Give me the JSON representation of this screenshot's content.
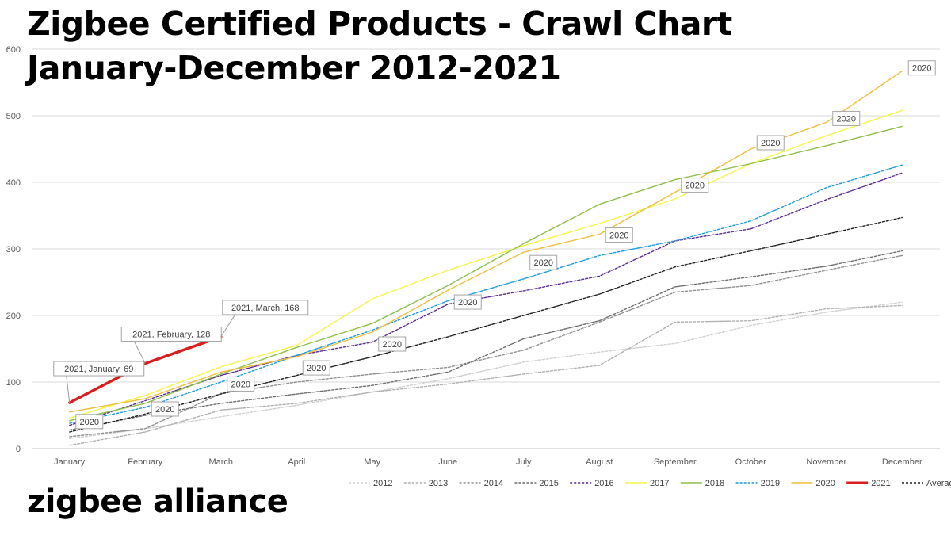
{
  "chart_data": {
    "type": "line",
    "title": "Zigbee Certified Products - Crawl Chart",
    "subtitle": "January-December 2012-2021",
    "categories": [
      "January",
      "February",
      "March",
      "April",
      "May",
      "June",
      "July",
      "August",
      "September",
      "October",
      "November",
      "December"
    ],
    "ylim": [
      0,
      600
    ],
    "yticks": [
      0,
      100,
      200,
      300,
      400,
      500,
      600
    ],
    "grid": true,
    "legend_position": "bottom",
    "series": [
      {
        "name": "2012",
        "color": "#d0d0d0",
        "dash": true,
        "values": [
          15,
          30,
          48,
          65,
          85,
          105,
          130,
          145,
          158,
          185,
          205,
          220
        ]
      },
      {
        "name": "2013",
        "color": "#b0b0b0",
        "dash": true,
        "values": [
          5,
          25,
          58,
          68,
          85,
          97,
          112,
          125,
          190,
          192,
          210,
          215
        ]
      },
      {
        "name": "2014",
        "color": "#909090",
        "dash": true,
        "values": [
          18,
          30,
          83,
          100,
          112,
          122,
          148,
          190,
          235,
          245,
          268,
          290
        ]
      },
      {
        "name": "2015",
        "color": "#6e6e6e",
        "dash": true,
        "values": [
          28,
          50,
          68,
          82,
          95,
          115,
          165,
          192,
          243,
          258,
          274,
          297
        ]
      },
      {
        "name": "2016",
        "color": "#5b2c91",
        "dash": true,
        "values": [
          35,
          72,
          110,
          140,
          160,
          217,
          237,
          259,
          312,
          330,
          374,
          414
        ]
      },
      {
        "name": "2017",
        "color": "#f5f54a",
        "dash": false,
        "values": [
          46,
          80,
          123,
          155,
          225,
          268,
          305,
          338,
          375,
          428,
          470,
          508
        ]
      },
      {
        "name": "2018",
        "color": "#8fbf4a",
        "dash": false,
        "values": [
          42,
          68,
          112,
          152,
          188,
          245,
          308,
          367,
          404,
          428,
          455,
          484
        ]
      },
      {
        "name": "2019",
        "color": "#1e9bd7",
        "dash": true,
        "values": [
          38,
          62,
          100,
          140,
          178,
          222,
          255,
          290,
          312,
          342,
          392,
          426
        ]
      },
      {
        "name": "2020",
        "color": "#eebe3c",
        "dash": false,
        "values": [
          55,
          75,
          115,
          138,
          175,
          238,
          295,
          322,
          385,
          450,
          490,
          567
        ]
      },
      {
        "name": "2021",
        "color": "#d81f1f",
        "dash": false,
        "width": 3.5,
        "values": [
          69,
          128,
          168,
          null,
          null,
          null,
          null,
          null,
          null,
          null,
          null,
          null
        ]
      },
      {
        "name": "Average",
        "color": "#222222",
        "dash": true,
        "values": [
          25,
          52,
          82,
          110,
          138,
          168,
          200,
          232,
          273,
          297,
          322,
          347
        ]
      }
    ],
    "annotations": [
      {
        "text": "2021, January, 69",
        "series": "2021",
        "category": "January"
      },
      {
        "text": "2021, February, 128",
        "series": "2021",
        "category": "February"
      },
      {
        "text": "2021, March, 168",
        "series": "2021",
        "category": "March"
      },
      {
        "text": "2020",
        "series": "2020",
        "category": "January"
      },
      {
        "text": "2020",
        "series": "2020",
        "category": "February"
      },
      {
        "text": "2020",
        "series": "2020",
        "category": "March"
      },
      {
        "text": "2020",
        "series": "2020",
        "category": "April"
      },
      {
        "text": "2020",
        "series": "2020",
        "category": "May"
      },
      {
        "text": "2020",
        "series": "2020",
        "category": "June"
      },
      {
        "text": "2020",
        "series": "2020",
        "category": "July"
      },
      {
        "text": "2020",
        "series": "2020",
        "category": "August"
      },
      {
        "text": "2020",
        "series": "2020",
        "category": "September"
      },
      {
        "text": "2020",
        "series": "2020",
        "category": "October"
      },
      {
        "text": "2020",
        "series": "2020",
        "category": "November"
      },
      {
        "text": "2020",
        "series": "2020",
        "category": "December"
      }
    ]
  },
  "brand": {
    "logo_text": "zigbee alliance"
  }
}
